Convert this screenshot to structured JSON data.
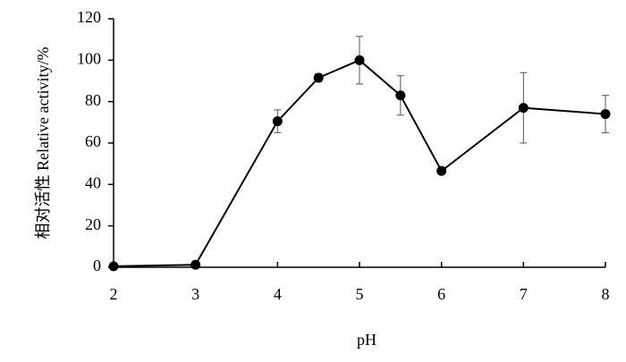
{
  "chart_data": {
    "type": "line",
    "xlabel": "pH",
    "ylabel": "相对活性  Relative activity/%",
    "x": [
      2,
      3,
      4,
      4.5,
      5,
      5.5,
      6,
      7,
      8
    ],
    "values": [
      0.5,
      1.2,
      70.5,
      91.5,
      100,
      83,
      46.5,
      77,
      74
    ],
    "errors": [
      0,
      0,
      5.5,
      2,
      11.5,
      9.5,
      1,
      17,
      9
    ],
    "color": "#000000",
    "xlim": [
      2,
      8
    ],
    "xticks": [
      2,
      3,
      4,
      5,
      6,
      7,
      8
    ],
    "ylim": [
      0,
      120
    ],
    "yticks": [
      0,
      20,
      40,
      60,
      80,
      100,
      120
    ],
    "grid": false
  }
}
